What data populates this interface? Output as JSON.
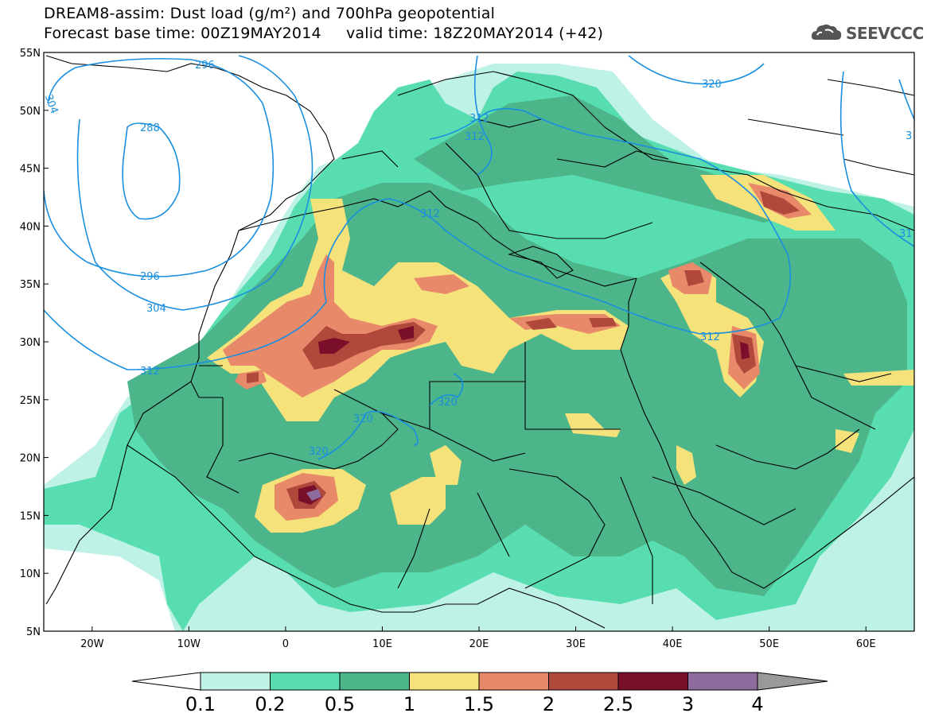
{
  "title": {
    "line1": "DREAM8-assim: Dust load (g/m²) and 700hPa geopotential",
    "line2": "Forecast base time: 00Z19MAY2014     valid time: 18Z20MAY2014 (+42)"
  },
  "logo": {
    "text": "SEEVCCC",
    "icon": "cloud-icon"
  },
  "map": {
    "lon_range": [
      -25,
      65
    ],
    "lat_range": [
      5,
      55
    ],
    "lon_ticks": [
      "20W",
      "10W",
      "0",
      "10E",
      "20E",
      "30E",
      "40E",
      "50E",
      "60E"
    ],
    "lat_ticks": [
      "55N",
      "50N",
      "45N",
      "40N",
      "35N",
      "30N",
      "25N",
      "20N",
      "15N",
      "10N",
      "5N"
    ]
  },
  "colorbar": {
    "labels": [
      "0.1",
      "0.2",
      "0.5",
      "1",
      "1.5",
      "2",
      "2.5",
      "3",
      "4"
    ],
    "colors": [
      "#bff2e6",
      "#58ddb0",
      "#4cb58a",
      "#f5e27a",
      "#e8896a",
      "#b0483c",
      "#7a0f2c",
      "#8f6c9e"
    ]
  },
  "contours": {
    "color": "#1a8fe0",
    "labels": [
      "296",
      "304",
      "288",
      "296",
      "304",
      "312",
      "312",
      "312",
      "312",
      "320",
      "320",
      "320",
      "320",
      "312",
      "31",
      "3"
    ]
  }
}
